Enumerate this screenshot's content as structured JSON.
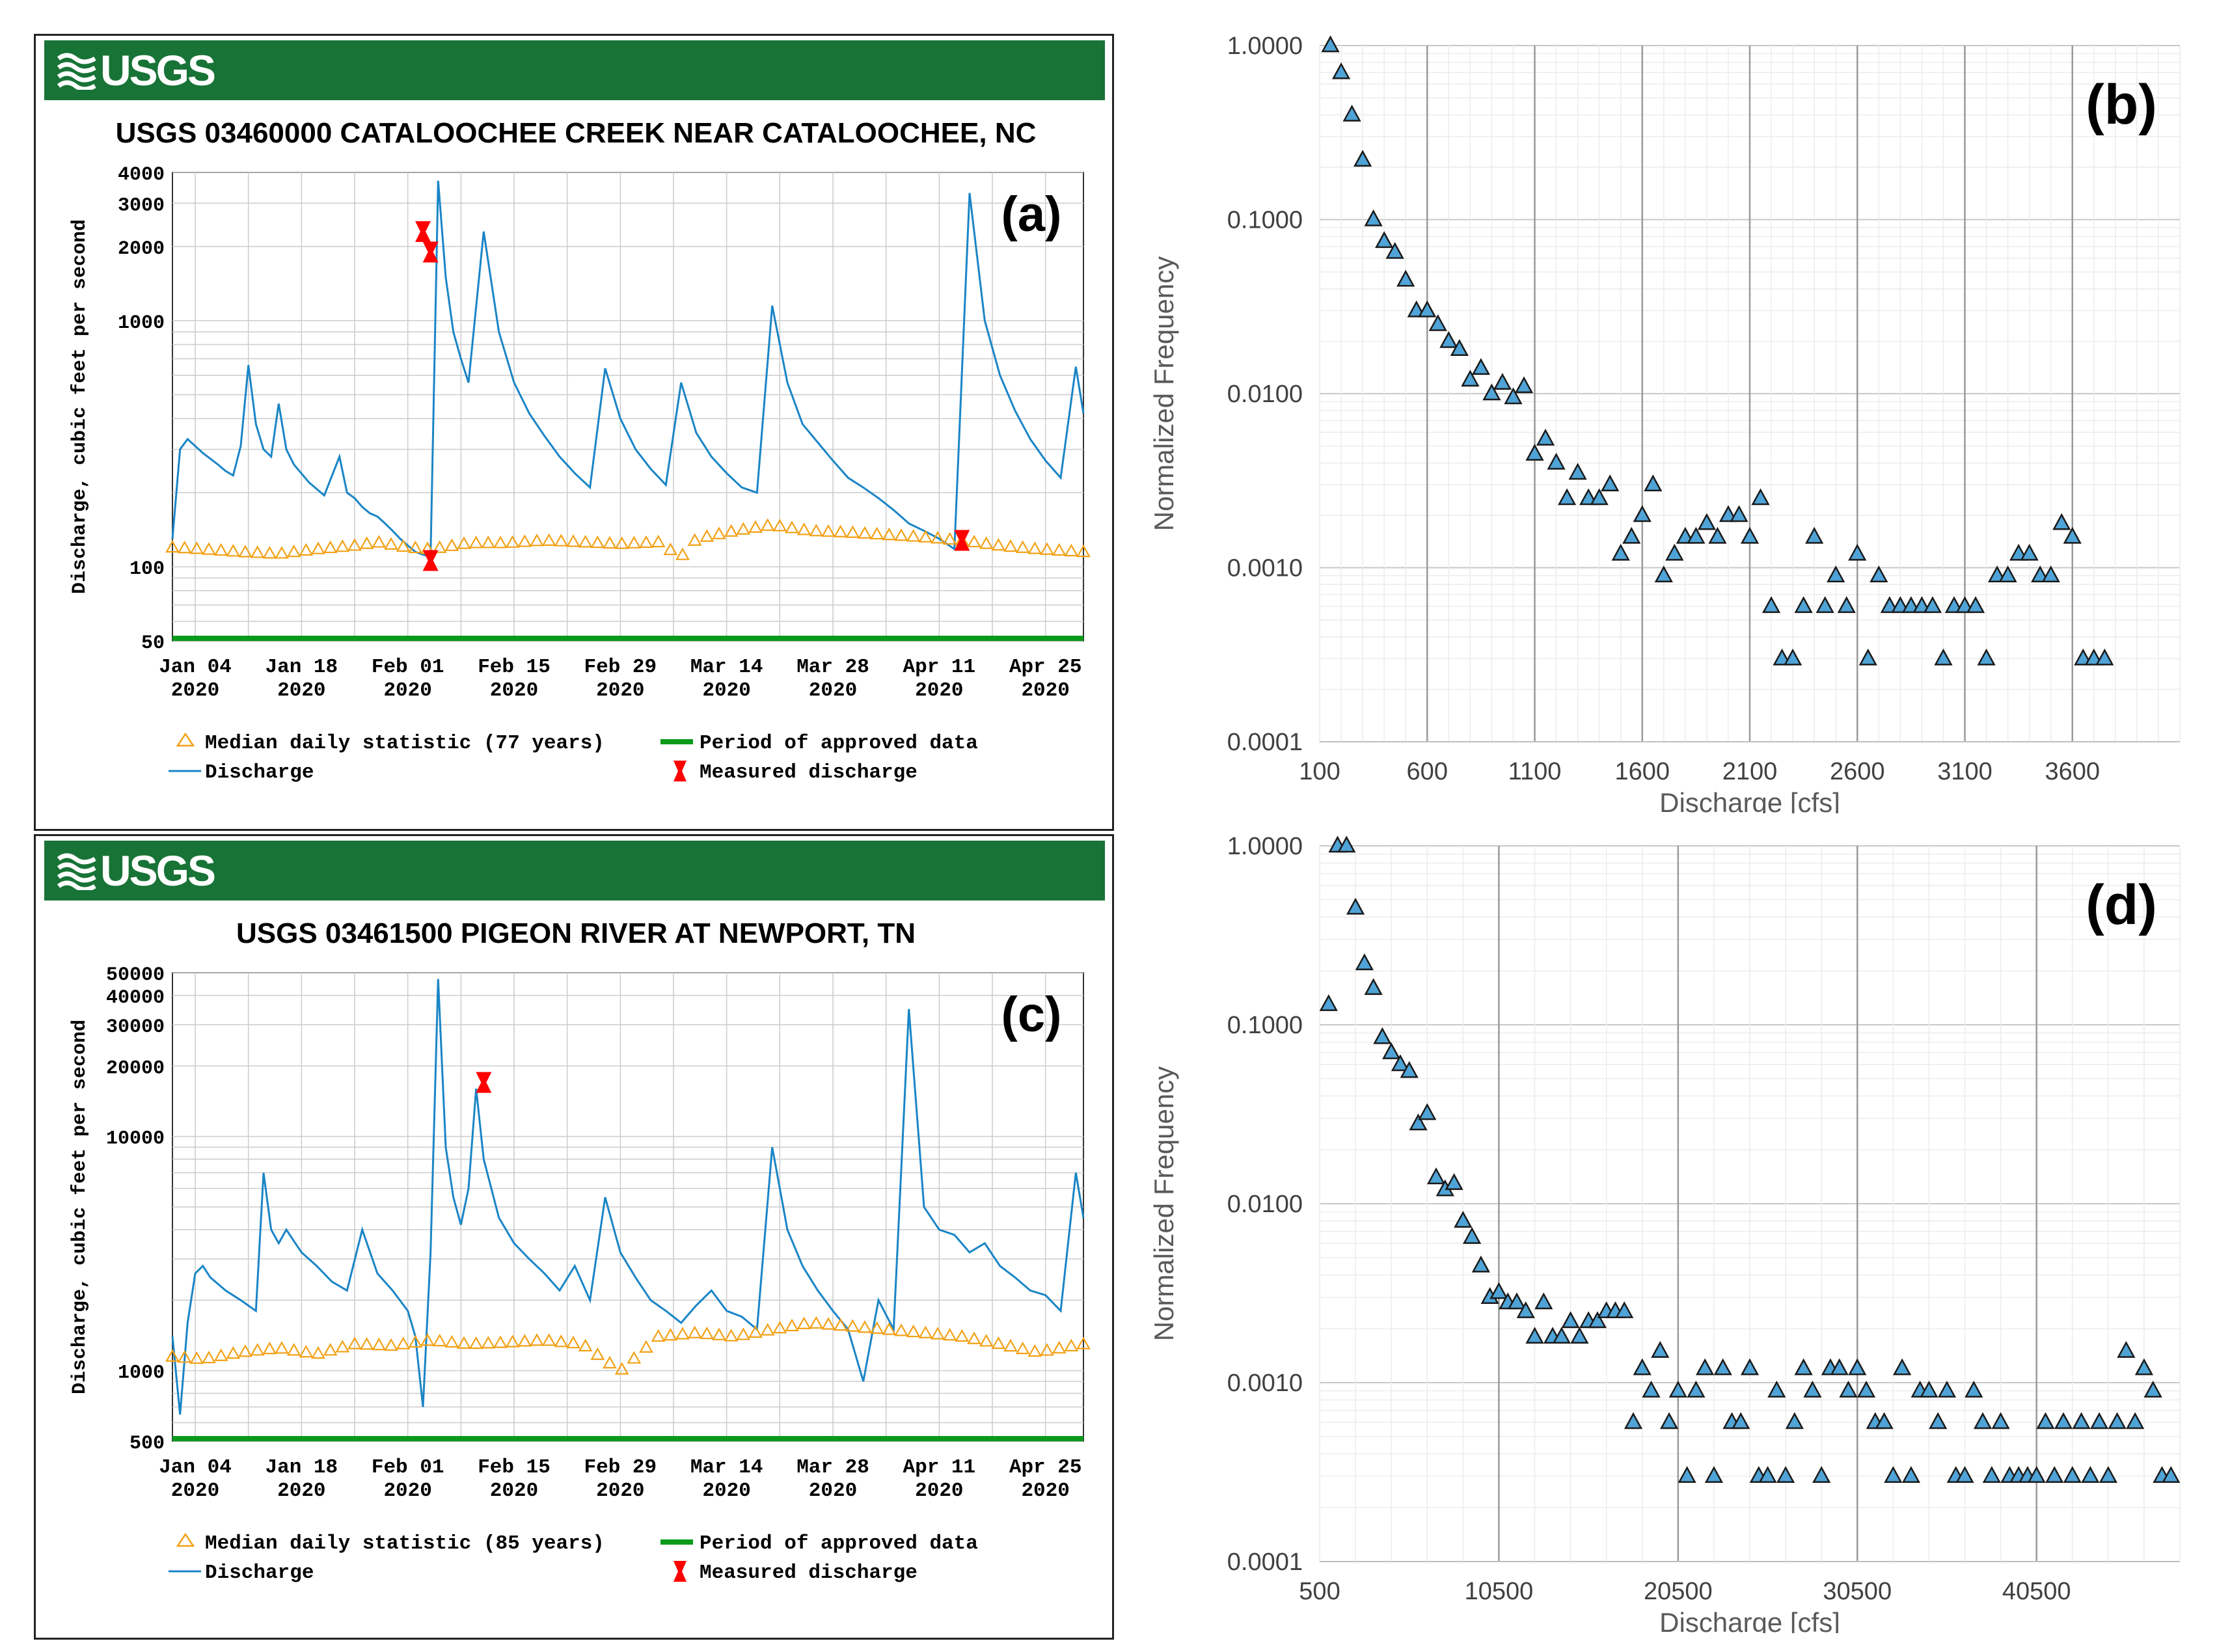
{
  "chart_data": [
    {
      "panel": "(a)",
      "type": "line",
      "agency": "USGS",
      "title": "USGS 03460000 CATALOOCHEE CREEK NEAR CATALOOCHEE, NC",
      "ylabel": "Discharge, cubic feet per second",
      "yscale": "log",
      "ylim": [
        50,
        4000
      ],
      "yticks": [
        "50",
        "100",
        "1000",
        "2000",
        "3000",
        "4000"
      ],
      "xticks": [
        "Jan 04\n2020",
        "Jan 18\n2020",
        "Feb 01\n2020",
        "Feb 15\n2020",
        "Feb 29\n2020",
        "Mar 14\n2020",
        "Mar 28\n2020",
        "Apr 11\n2020",
        "Apr 25\n2020"
      ],
      "xtick_lines": [
        [
          "Jan 04",
          "2020"
        ],
        [
          "Jan 18",
          "2020"
        ],
        [
          "Feb 01",
          "2020"
        ],
        [
          "Feb 15",
          "2020"
        ],
        [
          "Feb 29",
          "2020"
        ],
        [
          "Mar 14",
          "2020"
        ],
        [
          "Mar 28",
          "2020"
        ],
        [
          "Apr 11",
          "2020"
        ],
        [
          "Apr 25",
          "2020"
        ]
      ],
      "xlim_days": [
        1,
        121
      ],
      "legend": {
        "median": "Median daily statistic (77 years)",
        "discharge": "Discharge",
        "approved": "Period of approved data",
        "measured": "Measured discharge"
      },
      "series": [
        {
          "name": "Discharge",
          "x": [
            1,
            2,
            3,
            5,
            7,
            8,
            9,
            10,
            11,
            12,
            13,
            14,
            15,
            16,
            17,
            19,
            21,
            23,
            24,
            25,
            26,
            27,
            28,
            29,
            30,
            31,
            32,
            33,
            34,
            35,
            36,
            37,
            38,
            39,
            40,
            42,
            44,
            46,
            48,
            50,
            52,
            54,
            56,
            58,
            60,
            62,
            64,
            66,
            68,
            70,
            72,
            74,
            76,
            78,
            80,
            82,
            84,
            86,
            88,
            90,
            92,
            94,
            96,
            98,
            100,
            102,
            104,
            106,
            108,
            110,
            112,
            114,
            116,
            118,
            120,
            121
          ],
          "y": [
            130,
            300,
            330,
            290,
            260,
            245,
            235,
            310,
            660,
            380,
            300,
            280,
            460,
            300,
            260,
            220,
            195,
            280,
            200,
            190,
            175,
            165,
            160,
            150,
            140,
            130,
            122,
            115,
            112,
            110,
            3700,
            1500,
            900,
            700,
            560,
            2300,
            900,
            560,
            420,
            340,
            280,
            240,
            210,
            640,
            400,
            300,
            250,
            215,
            560,
            350,
            280,
            240,
            210,
            200,
            1150,
            560,
            380,
            320,
            270,
            230,
            210,
            190,
            170,
            150,
            140,
            130,
            118,
            3300,
            1000,
            600,
            430,
            330,
            270,
            230,
            650,
            420
          ],
          "style": "line",
          "color": "#1a85c6"
        },
        {
          "name": "Median daily statistic",
          "x": [
            1,
            5,
            10,
            15,
            20,
            25,
            28,
            32,
            35,
            38,
            40,
            45,
            50,
            55,
            60,
            65,
            68,
            70,
            75,
            80,
            85,
            90,
            95,
            100,
            105,
            110,
            115,
            121
          ],
          "y": [
            120,
            118,
            115,
            113,
            118,
            122,
            126,
            120,
            118,
            122,
            125,
            125,
            128,
            126,
            124,
            126,
            110,
            130,
            140,
            148,
            140,
            138,
            135,
            132,
            128,
            122,
            118,
            115
          ],
          "style": "open-triangle",
          "color": "#f2a116"
        },
        {
          "name": "Measured discharge",
          "x": [
            34,
            35,
            35,
            105
          ],
          "y": [
            2300,
            1900,
            106,
            128
          ],
          "style": "red-bowtie",
          "color": "#ff0000"
        }
      ]
    },
    {
      "panel": "(b)",
      "type": "scatter",
      "title": "",
      "xlabel": "Discharge [cfs]",
      "ylabel": "Normalized Frequency",
      "yscale": "log",
      "ylim": [
        0.0001,
        1.0
      ],
      "yticks": [
        "0.0001",
        "0.0010",
        "0.0100",
        "0.1000",
        "1.0000"
      ],
      "xticks": [
        "100",
        "600",
        "1100",
        "1600",
        "2100",
        "2600",
        "3100",
        "3600"
      ],
      "xlim": [
        100,
        4100
      ],
      "x": [
        150,
        200,
        250,
        300,
        350,
        400,
        450,
        500,
        550,
        600,
        650,
        700,
        750,
        800,
        850,
        900,
        950,
        1000,
        1050,
        1100,
        1150,
        1200,
        1250,
        1300,
        1350,
        1400,
        1450,
        1500,
        1550,
        1600,
        1650,
        1700,
        1750,
        1800,
        1850,
        1900,
        1950,
        2000,
        2050,
        2100,
        2150,
        2200,
        2250,
        2300,
        2350,
        2400,
        2450,
        2500,
        2550,
        2600,
        2650,
        2700,
        2750,
        2800,
        2850,
        2900,
        2950,
        3000,
        3050,
        3100,
        3150,
        3200,
        3250,
        3300,
        3350,
        3400,
        3450,
        3500,
        3550,
        3600,
        3650,
        3700,
        3750
      ],
      "y": [
        1.0,
        0.7,
        0.4,
        0.22,
        0.1,
        0.075,
        0.065,
        0.045,
        0.03,
        0.03,
        0.025,
        0.02,
        0.018,
        0.012,
        0.014,
        0.01,
        0.0115,
        0.0095,
        0.011,
        0.0045,
        0.0055,
        0.004,
        0.0025,
        0.0035,
        0.0025,
        0.0025,
        0.003,
        0.0012,
        0.0015,
        0.002,
        0.003,
        0.0009,
        0.0012,
        0.0015,
        0.0015,
        0.0018,
        0.0015,
        0.002,
        0.002,
        0.0015,
        0.0025,
        0.0006,
        0.0003,
        0.0003,
        0.0006,
        0.0015,
        0.0006,
        0.0009,
        0.0006,
        0.0012,
        0.0003,
        0.0009,
        0.0006,
        0.0006,
        0.0006,
        0.0006,
        0.0006,
        0.0003,
        0.0006,
        0.0006,
        0.0006,
        0.0003,
        0.0009,
        0.0009,
        0.0012,
        0.0012,
        0.0009,
        0.0009,
        0.0018,
        0.0015,
        0.0003,
        0.0003,
        0.0003
      ],
      "marker": "triangle",
      "color": "#4fa3d6",
      "label": "(b)"
    },
    {
      "panel": "(c)",
      "type": "line",
      "agency": "USGS",
      "title": "USGS 03461500 PIGEON RIVER AT NEWPORT, TN",
      "ylabel": "Discharge, cubic feet per second",
      "yscale": "log",
      "ylim": [
        500,
        50000
      ],
      "yticks": [
        "500",
        "1000",
        "10000",
        "20000",
        "30000",
        "40000",
        "50000"
      ],
      "xticks": [
        "Jan 04\n2020",
        "Jan 18\n2020",
        "Feb 01\n2020",
        "Feb 15\n2020",
        "Feb 29\n2020",
        "Mar 14\n2020",
        "Mar 28\n2020",
        "Apr 11\n2020",
        "Apr 25\n2020"
      ],
      "xtick_lines": [
        [
          "Jan 04",
          "2020"
        ],
        [
          "Jan 18",
          "2020"
        ],
        [
          "Feb 01",
          "2020"
        ],
        [
          "Feb 15",
          "2020"
        ],
        [
          "Feb 29",
          "2020"
        ],
        [
          "Mar 14",
          "2020"
        ],
        [
          "Mar 28",
          "2020"
        ],
        [
          "Apr 11",
          "2020"
        ],
        [
          "Apr 25",
          "2020"
        ]
      ],
      "xlim_days": [
        1,
        121
      ],
      "legend": {
        "median": "Median daily statistic (85 years)",
        "discharge": "Discharge",
        "approved": "Period of approved data",
        "measured": "Measured discharge"
      },
      "series": [
        {
          "name": "Discharge",
          "x": [
            1,
            2,
            3,
            4,
            5,
            6,
            8,
            10,
            12,
            13,
            14,
            15,
            16,
            18,
            20,
            22,
            24,
            26,
            28,
            30,
            32,
            33,
            34,
            35,
            36,
            37,
            38,
            39,
            40,
            41,
            42,
            44,
            46,
            48,
            50,
            52,
            54,
            56,
            58,
            60,
            62,
            64,
            66,
            68,
            70,
            72,
            74,
            76,
            78,
            80,
            82,
            84,
            86,
            88,
            90,
            92,
            94,
            96,
            98,
            100,
            102,
            104,
            106,
            108,
            110,
            112,
            114,
            116,
            118,
            120,
            121
          ],
          "y": [
            1400,
            650,
            1600,
            2600,
            2800,
            2500,
            2200,
            2000,
            1800,
            7000,
            4000,
            3500,
            4000,
            3200,
            2800,
            2400,
            2200,
            4000,
            2600,
            2200,
            1800,
            1400,
            700,
            3200,
            47000,
            9000,
            5500,
            4200,
            6000,
            16000,
            8000,
            4500,
            3500,
            3000,
            2600,
            2200,
            2800,
            2000,
            5500,
            3200,
            2500,
            2000,
            1800,
            1600,
            1900,
            2200,
            1800,
            1700,
            1500,
            9000,
            4000,
            2800,
            2200,
            1800,
            1500,
            900,
            2000,
            1500,
            35000,
            5000,
            4000,
            3800,
            3200,
            3500,
            2800,
            2500,
            2200,
            2100,
            1800,
            7000,
            4500
          ],
          "style": "line",
          "color": "#1a85c6"
        },
        {
          "name": "Median daily statistic",
          "x": [
            1,
            5,
            10,
            15,
            20,
            25,
            30,
            35,
            40,
            45,
            50,
            55,
            60,
            65,
            70,
            75,
            80,
            85,
            90,
            95,
            100,
            105,
            110,
            115,
            118,
            121
          ],
          "y": [
            1150,
            1120,
            1200,
            1250,
            1180,
            1300,
            1280,
            1350,
            1300,
            1320,
            1350,
            1300,
            1000,
            1400,
            1450,
            1400,
            1500,
            1600,
            1550,
            1500,
            1450,
            1400,
            1300,
            1200,
            1250,
            1300
          ],
          "style": "open-triangle",
          "color": "#f2a116"
        },
        {
          "name": "Measured discharge",
          "x": [
            42
          ],
          "y": [
            17000
          ],
          "style": "red-bowtie",
          "color": "#ff0000"
        }
      ]
    },
    {
      "panel": "(d)",
      "type": "scatter",
      "title": "",
      "xlabel": "Discharge [cfs]",
      "ylabel": "Normalized Frequency",
      "yscale": "log",
      "ylim": [
        0.0001,
        1.0
      ],
      "yticks": [
        "0.0001",
        "0.0010",
        "0.0100",
        "0.1000",
        "1.0000"
      ],
      "xticks": [
        "500",
        "10500",
        "20500",
        "30500",
        "40500"
      ],
      "xlim": [
        500,
        48500
      ],
      "x": [
        1000,
        1500,
        2000,
        2500,
        3000,
        3500,
        4000,
        4500,
        5000,
        5500,
        6000,
        6500,
        7000,
        7500,
        8000,
        8500,
        9000,
        9500,
        10000,
        10500,
        11000,
        11500,
        12000,
        12500,
        13000,
        13500,
        14000,
        14500,
        15000,
        15500,
        16000,
        16500,
        17000,
        17500,
        18000,
        18500,
        19000,
        19500,
        20000,
        20500,
        21000,
        21500,
        22000,
        22500,
        23000,
        23500,
        24000,
        24500,
        25000,
        25500,
        26000,
        26500,
        27000,
        27500,
        28000,
        28500,
        29000,
        29500,
        30000,
        30500,
        31000,
        31500,
        32000,
        32500,
        33000,
        33500,
        34000,
        34500,
        35000,
        35500,
        36000,
        36500,
        37000,
        37500,
        38000,
        38500,
        39000,
        39500,
        40000,
        40500,
        41000,
        41500,
        42000,
        42500,
        43000,
        43500,
        44000,
        44500,
        45000,
        45500,
        46000,
        46500,
        47000,
        47500,
        48000
      ],
      "y": [
        0.13,
        1.0,
        1.0,
        0.45,
        0.22,
        0.16,
        0.085,
        0.07,
        0.06,
        0.055,
        0.028,
        0.032,
        0.014,
        0.012,
        0.013,
        0.008,
        0.0065,
        0.0045,
        0.003,
        0.0032,
        0.0028,
        0.0028,
        0.0025,
        0.0018,
        0.0028,
        0.0018,
        0.0018,
        0.0022,
        0.0018,
        0.0022,
        0.0022,
        0.0025,
        0.0025,
        0.0025,
        0.0006,
        0.0012,
        0.0009,
        0.0015,
        0.0006,
        0.0009,
        0.0003,
        0.0009,
        0.0012,
        0.0003,
        0.0012,
        0.0006,
        0.0006,
        0.0012,
        0.0003,
        0.0003,
        0.0009,
        0.0003,
        0.0006,
        0.0012,
        0.0009,
        0.0003,
        0.0012,
        0.0012,
        0.0009,
        0.0012,
        0.0009,
        0.0006,
        0.0006,
        0.0003,
        0.0012,
        0.0003,
        0.0009,
        0.0009,
        0.0006,
        0.0009,
        0.0003,
        0.0003,
        0.0009,
        0.0006,
        0.0003,
        0.0006,
        0.0003,
        0.0003,
        0.0003,
        0.0003,
        0.0006,
        0.0003,
        0.0006,
        0.0003,
        0.0006,
        0.0003,
        0.0006,
        0.0003,
        0.0006,
        0.0015,
        0.0006,
        0.0012,
        0.0009,
        0.0003,
        0.0003
      ],
      "marker": "triangle",
      "color": "#4fa3d6",
      "label": "(d)"
    }
  ]
}
